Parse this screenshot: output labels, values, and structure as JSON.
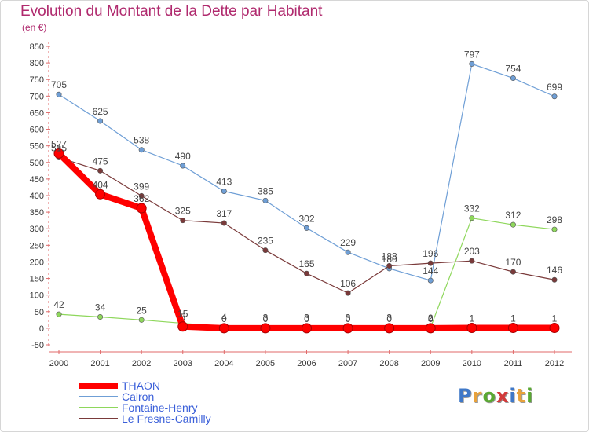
{
  "header": {
    "title": "Evolution du Montant de la Dette par Habitant",
    "unit": "(en €)"
  },
  "logo": {
    "letters": [
      "P",
      "r",
      "o",
      "x",
      "i",
      "t",
      "i"
    ],
    "colors": [
      "#3f78c8",
      "#e8a23c",
      "#5aa832",
      "#d23a3a",
      "#3f78c8",
      "#e8a23c",
      "#5aa832"
    ]
  },
  "chart_data": {
    "type": "line",
    "title": "Evolution du Montant de la Dette par Habitant",
    "subtitle": "(en €)",
    "x": [
      "2000",
      "2001",
      "2002",
      "2003",
      "2004",
      "2005",
      "2006",
      "2007",
      "2008",
      "2009",
      "2010",
      "2011",
      "2012"
    ],
    "ylim": [
      -50,
      850
    ],
    "yticks": [
      -50,
      0,
      50,
      100,
      150,
      200,
      250,
      300,
      350,
      400,
      450,
      500,
      550,
      600,
      650,
      700,
      750,
      800,
      850
    ],
    "grid": false,
    "legend_position": "bottom-left",
    "series": [
      {
        "name": "THAON",
        "color": "#ff0000",
        "values": [
          527,
          404,
          362,
          5,
          0,
          0,
          0,
          0,
          0,
          0,
          1,
          1,
          1
        ],
        "labels": [
          "527",
          "404",
          "362",
          "5",
          "0",
          "0",
          "0",
          "0",
          "0",
          "0",
          "1",
          "1",
          "1"
        ]
      },
      {
        "name": "Cairon",
        "color": "#6f9fd6",
        "values": [
          705,
          625,
          538,
          490,
          413,
          385,
          302,
          229,
          180,
          144,
          797,
          754,
          699
        ],
        "labels": [
          "705",
          "625",
          "538",
          "490",
          "413",
          "385",
          "302",
          "229",
          "180",
          "144",
          "797",
          "754",
          "699"
        ]
      },
      {
        "name": "Fontaine-Henry",
        "color": "#8ed75b",
        "values": [
          42,
          34,
          25,
          15,
          4,
          3,
          3,
          3,
          3,
          2,
          332,
          312,
          298
        ],
        "labels": [
          "42",
          "34",
          "25",
          "15",
          "4",
          "3",
          "3",
          "3",
          "3",
          "2",
          "332",
          "312",
          "298"
        ]
      },
      {
        "name": "Le Fresne-Camilly",
        "color": "#7a3a3a",
        "values": [
          515,
          475,
          399,
          325,
          317,
          235,
          165,
          106,
          188,
          196,
          203,
          170,
          146
        ],
        "labels": [
          "515",
          "475",
          "399",
          "325",
          "317",
          "235",
          "165",
          "106",
          "188",
          "196",
          "203",
          "170",
          "146"
        ]
      }
    ]
  }
}
